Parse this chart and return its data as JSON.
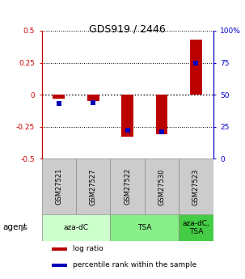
{
  "title": "GDS919 / 2446",
  "samples": [
    "GSM27521",
    "GSM27527",
    "GSM27522",
    "GSM27530",
    "GSM27523"
  ],
  "log_ratios": [
    -0.03,
    -0.05,
    -0.33,
    -0.31,
    0.43
  ],
  "percentile_ranks": [
    43,
    44,
    22,
    21,
    75
  ],
  "ylim_left": [
    -0.5,
    0.5
  ],
  "ylim_right": [
    0,
    100
  ],
  "yticks_left": [
    -0.5,
    -0.25,
    0,
    0.25,
    0.5
  ],
  "yticks_right": [
    0,
    25,
    50,
    75,
    100
  ],
  "ytick_labels_right": [
    "0",
    "25",
    "50",
    "75",
    "100%"
  ],
  "bar_width": 0.35,
  "dot_size": 18,
  "bar_color": "#bb0000",
  "dot_color": "#0000bb",
  "left_axis_color": "#cc0000",
  "right_axis_color": "#0000cc",
  "agent_groups": [
    {
      "label": "aza-dC",
      "samples": [
        0,
        1
      ],
      "color": "#ccffcc"
    },
    {
      "label": "TSA",
      "samples": [
        2,
        3
      ],
      "color": "#88ee88"
    },
    {
      "label": "aza-dC,\nTSA",
      "samples": [
        4
      ],
      "color": "#44cc44"
    }
  ],
  "background_color": "#ffffff",
  "plot_bg": "#ffffff",
  "grid_color": "#000000",
  "sample_box_color": "#cccccc",
  "agent_label": "agent",
  "legend_items": [
    {
      "color": "#bb0000",
      "label": "log ratio"
    },
    {
      "color": "#0000bb",
      "label": "percentile rank within the sample"
    }
  ]
}
